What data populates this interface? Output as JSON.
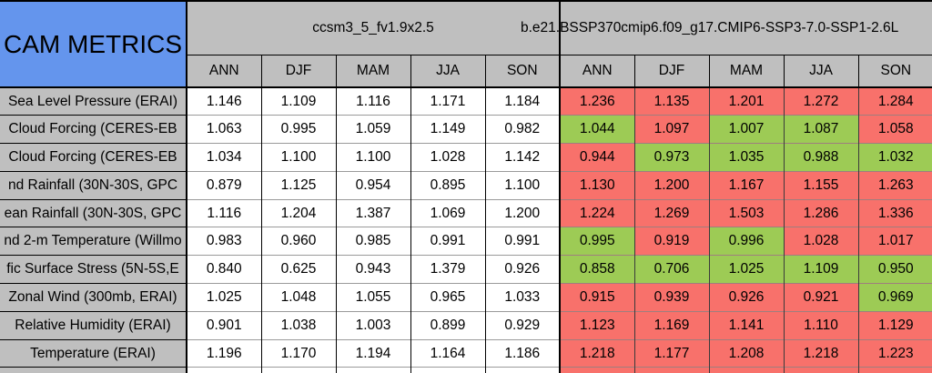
{
  "title": "CAM METRICS",
  "colors": {
    "header_blue": "#6495ED",
    "header_gray": "#BFBFBF",
    "pass_green": "#9DCB55",
    "flag_red": "#F8716B"
  },
  "chart_data": {
    "type": "table",
    "col_groups": [
      {
        "label": "ccsm3_5_fv1.9x2.5",
        "columns": [
          "ANN",
          "DJF",
          "MAM",
          "JJA",
          "SON"
        ]
      },
      {
        "label": "b.e21.BSSP370cmip6.f09_g17.CMIP6-SSP3-7.0-SSP1-2.6L",
        "columns": [
          "ANN",
          "DJF",
          "MAM",
          "JJA",
          "SON"
        ]
      }
    ],
    "rows": [
      {
        "label": "Sea Level Pressure (ERAI)",
        "baseline": [
          "1.146",
          "1.109",
          "1.116",
          "1.171",
          "1.184"
        ],
        "comparison": [
          "1.236",
          "1.135",
          "1.201",
          "1.272",
          "1.284"
        ],
        "comparison_status": [
          "red",
          "red",
          "red",
          "red",
          "red"
        ]
      },
      {
        "label": "Cloud Forcing (CERES-EB",
        "baseline": [
          "1.063",
          "0.995",
          "1.059",
          "1.149",
          "0.982"
        ],
        "comparison": [
          "1.044",
          "1.097",
          "1.007",
          "1.087",
          "1.058"
        ],
        "comparison_status": [
          "green",
          "red",
          "green",
          "green",
          "red"
        ]
      },
      {
        "label": "Cloud Forcing (CERES-EB",
        "baseline": [
          "1.034",
          "1.100",
          "1.100",
          "1.028",
          "1.142"
        ],
        "comparison": [
          "0.944",
          "0.973",
          "1.035",
          "0.988",
          "1.032"
        ],
        "comparison_status": [
          "red",
          "green",
          "green",
          "green",
          "green"
        ]
      },
      {
        "label": "nd Rainfall (30N-30S, GPC",
        "baseline": [
          "0.879",
          "1.125",
          "0.954",
          "0.895",
          "1.100"
        ],
        "comparison": [
          "1.130",
          "1.200",
          "1.167",
          "1.155",
          "1.263"
        ],
        "comparison_status": [
          "red",
          "red",
          "red",
          "red",
          "red"
        ]
      },
      {
        "label": "ean Rainfall (30N-30S, GPC",
        "baseline": [
          "1.116",
          "1.204",
          "1.387",
          "1.069",
          "1.200"
        ],
        "comparison": [
          "1.224",
          "1.269",
          "1.503",
          "1.286",
          "1.336"
        ],
        "comparison_status": [
          "red",
          "red",
          "red",
          "red",
          "red"
        ]
      },
      {
        "label": "nd 2-m Temperature (Willmo",
        "baseline": [
          "0.983",
          "0.960",
          "0.985",
          "0.991",
          "0.991"
        ],
        "comparison": [
          "0.995",
          "0.919",
          "0.996",
          "1.028",
          "1.017"
        ],
        "comparison_status": [
          "green",
          "red",
          "green",
          "red",
          "red"
        ]
      },
      {
        "label": "fic Surface Stress (5N-5S,E",
        "baseline": [
          "0.840",
          "0.625",
          "0.943",
          "1.379",
          "0.926"
        ],
        "comparison": [
          "0.858",
          "0.706",
          "1.025",
          "1.109",
          "0.950"
        ],
        "comparison_status": [
          "green",
          "green",
          "green",
          "green",
          "green"
        ]
      },
      {
        "label": "Zonal Wind (300mb, ERAI)",
        "baseline": [
          "1.025",
          "1.048",
          "1.055",
          "0.965",
          "1.033"
        ],
        "comparison": [
          "0.915",
          "0.939",
          "0.926",
          "0.921",
          "0.969"
        ],
        "comparison_status": [
          "red",
          "red",
          "red",
          "red",
          "green"
        ]
      },
      {
        "label": "Relative Humidity (ERAI)",
        "baseline": [
          "0.901",
          "1.038",
          "1.003",
          "0.899",
          "0.929"
        ],
        "comparison": [
          "1.123",
          "1.169",
          "1.141",
          "1.110",
          "1.129"
        ],
        "comparison_status": [
          "red",
          "red",
          "red",
          "red",
          "red"
        ]
      },
      {
        "label": "Temperature (ERAI)",
        "baseline": [
          "1.196",
          "1.170",
          "1.194",
          "1.164",
          "1.186"
        ],
        "comparison": [
          "1.218",
          "1.177",
          "1.208",
          "1.218",
          "1.223"
        ],
        "comparison_status": [
          "red",
          "red",
          "red",
          "red",
          "red"
        ]
      }
    ]
  }
}
